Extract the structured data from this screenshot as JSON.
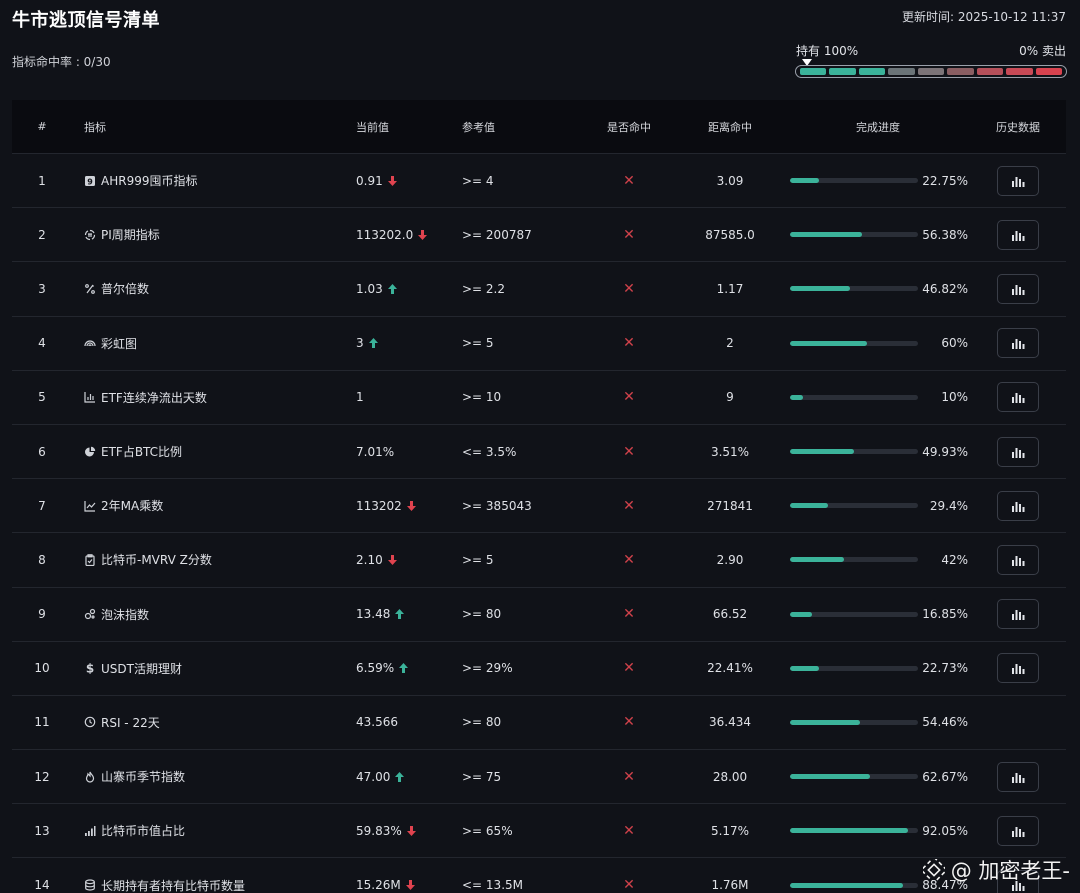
{
  "header": {
    "title": "牛市逃顶信号清单",
    "updated": "更新时间: 2025-10-12 11:37",
    "hit_rate": "指标命中率 : 0/30"
  },
  "gauge": {
    "left_label": "持有 100%",
    "right_label": "0% 卖出",
    "pointer_level": 0,
    "segment_colors": [
      "#3bb39a",
      "#3bb39a",
      "#3bb39a",
      "#6b7478",
      "#7c7478",
      "#8a5e62",
      "#b5505a",
      "#c84a56",
      "#d8434f"
    ]
  },
  "colors": {
    "accent_green": "#3bb39a",
    "down_red": "#e0434f",
    "up_green": "#3bb39a",
    "miss_red": "#d0424b"
  },
  "table": {
    "columns": [
      "#",
      "指标",
      "当前值",
      "参考值",
      "是否命中",
      "距离命中",
      "完成进度",
      "历史数据"
    ],
    "rows": [
      {
        "num": "1",
        "icon": "square-9-icon",
        "name": "AHR999囤币指标",
        "current": "0.91",
        "trend": "down",
        "ref": ">= 4",
        "hit": "✕",
        "dist": "3.09",
        "progress": 22.75,
        "pct": "22.75%",
        "history": true
      },
      {
        "num": "2",
        "icon": "pi-cycle-icon",
        "name": "PI周期指标",
        "current": "113202.0",
        "trend": "down",
        "ref": ">= 200787",
        "hit": "✕",
        "dist": "87585.0",
        "progress": 56.38,
        "pct": "56.38%",
        "history": true
      },
      {
        "num": "3",
        "icon": "puell-icon",
        "name": "普尔倍数",
        "current": "1.03",
        "trend": "up",
        "ref": ">= 2.2",
        "hit": "✕",
        "dist": "1.17",
        "progress": 46.82,
        "pct": "46.82%",
        "history": true
      },
      {
        "num": "4",
        "icon": "rainbow-icon",
        "name": "彩虹图",
        "current": "3",
        "trend": "up",
        "ref": ">= 5",
        "hit": "✕",
        "dist": "2",
        "progress": 60,
        "pct": "60%",
        "history": true
      },
      {
        "num": "5",
        "icon": "bar-chart-icon",
        "name": "ETF连续净流出天数",
        "current": "1",
        "trend": "",
        "ref": ">= 10",
        "hit": "✕",
        "dist": "9",
        "progress": 10,
        "pct": "10%",
        "history": true
      },
      {
        "num": "6",
        "icon": "pie-chart-icon",
        "name": "ETF占BTC比例",
        "current": "7.01%",
        "trend": "",
        "ref": "<= 3.5%",
        "hit": "✕",
        "dist": "3.51%",
        "progress": 49.93,
        "pct": "49.93%",
        "history": true
      },
      {
        "num": "7",
        "icon": "line-chart-icon",
        "name": "2年MA乘数",
        "current": "113202",
        "trend": "down",
        "ref": ">= 385043",
        "hit": "✕",
        "dist": "271841",
        "progress": 29.4,
        "pct": "29.4%",
        "history": true
      },
      {
        "num": "8",
        "icon": "clipboard-icon",
        "name": "比特币-MVRV Z分数",
        "current": "2.10",
        "trend": "down",
        "ref": ">= 5",
        "hit": "✕",
        "dist": "2.90",
        "progress": 42,
        "pct": "42%",
        "history": true
      },
      {
        "num": "9",
        "icon": "bubble-icon",
        "name": "泡沫指数",
        "current": "13.48",
        "trend": "up",
        "ref": ">= 80",
        "hit": "✕",
        "dist": "66.52",
        "progress": 16.85,
        "pct": "16.85%",
        "history": true
      },
      {
        "num": "10",
        "icon": "dollar-icon",
        "name": "USDT活期理财",
        "current": "6.59%",
        "trend": "up",
        "ref": ">= 29%",
        "hit": "✕",
        "dist": "22.41%",
        "progress": 22.73,
        "pct": "22.73%",
        "history": true
      },
      {
        "num": "11",
        "icon": "clock-icon",
        "name": "RSI - 22天",
        "current": "43.566",
        "trend": "",
        "ref": ">= 80",
        "hit": "✕",
        "dist": "36.434",
        "progress": 54.46,
        "pct": "54.46%",
        "history": false
      },
      {
        "num": "12",
        "icon": "flame-icon",
        "name": "山寨币季节指数",
        "current": "47.00",
        "trend": "up",
        "ref": ">= 75",
        "hit": "✕",
        "dist": "28.00",
        "progress": 62.67,
        "pct": "62.67%",
        "history": true
      },
      {
        "num": "13",
        "icon": "signal-bars-icon",
        "name": "比特币市值占比",
        "current": "59.83%",
        "trend": "down",
        "ref": ">= 65%",
        "hit": "✕",
        "dist": "5.17%",
        "progress": 92.05,
        "pct": "92.05%",
        "history": true
      },
      {
        "num": "14",
        "icon": "database-icon",
        "name": "长期持有者持有比特币数量",
        "current": "15.26M",
        "trend": "down",
        "ref": "<= 13.5M",
        "hit": "✕",
        "dist": "1.76M",
        "progress": 88.47,
        "pct": "88.47%",
        "history": true
      }
    ]
  },
  "watermark": {
    "text": "@ 加密老王-"
  }
}
